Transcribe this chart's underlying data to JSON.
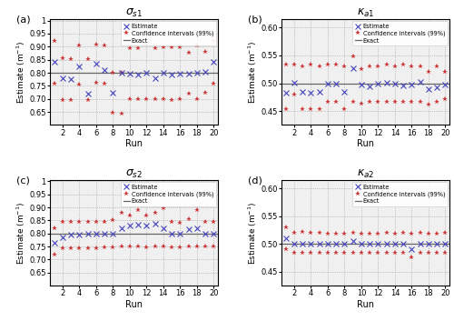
{
  "exact": {
    "sigma_s1": 0.8,
    "ka1": 0.5,
    "sigma_s2": 0.8,
    "ka2": 0.5
  },
  "runs": [
    1,
    2,
    3,
    4,
    5,
    6,
    7,
    8,
    9,
    10,
    11,
    12,
    13,
    14,
    15,
    16,
    17,
    18,
    19,
    20
  ],
  "estimate_color": "#4444bb",
  "ci_color": "#cc3333",
  "exact_color": "#666666",
  "bg_color": "#f0f0f0",
  "sigma_s1_est": [
    0.843,
    0.778,
    0.776,
    0.824,
    0.72,
    0.835,
    0.812,
    0.724,
    0.8,
    0.796,
    0.792,
    0.8,
    0.78,
    0.8,
    0.792,
    0.797,
    0.795,
    0.801,
    0.804,
    0.842
  ],
  "sigma_s1_ci_upper": [
    0.921,
    0.855,
    0.853,
    0.906,
    0.853,
    0.907,
    0.905,
    0.8,
    0.8,
    0.895,
    0.893,
    0.91,
    0.893,
    0.897,
    0.896,
    0.896,
    0.875,
    0.906,
    0.88,
    0.921
  ],
  "sigma_s1_ci_lower": [
    0.757,
    0.695,
    0.697,
    0.755,
    0.695,
    0.763,
    0.76,
    0.648,
    0.645,
    0.7,
    0.698,
    0.698,
    0.7,
    0.7,
    0.695,
    0.7,
    0.72,
    0.7,
    0.724,
    0.758
  ],
  "ka1_est": [
    0.483,
    0.501,
    0.485,
    0.483,
    0.484,
    0.499,
    0.5,
    0.484,
    0.527,
    0.497,
    0.494,
    0.5,
    0.501,
    0.5,
    0.496,
    0.497,
    0.503,
    0.49,
    0.493,
    0.498
  ],
  "ka1_ci_upper": [
    0.533,
    0.533,
    0.531,
    0.534,
    0.53,
    0.533,
    0.534,
    0.53,
    0.549,
    0.525,
    0.531,
    0.53,
    0.533,
    0.53,
    0.534,
    0.53,
    0.531,
    0.521,
    0.531,
    0.521
  ],
  "ka1_ci_lower": [
    0.453,
    0.48,
    0.453,
    0.453,
    0.453,
    0.467,
    0.467,
    0.453,
    0.467,
    0.463,
    0.467,
    0.467,
    0.467,
    0.467,
    0.467,
    0.467,
    0.467,
    0.462,
    0.467,
    0.471
  ],
  "sigma_s2_est": [
    0.764,
    0.786,
    0.795,
    0.797,
    0.798,
    0.8,
    0.8,
    0.8,
    0.82,
    0.83,
    0.834,
    0.83,
    0.836,
    0.82,
    0.8,
    0.8,
    0.815,
    0.82,
    0.8,
    0.8
  ],
  "sigma_s2_ci_upper": [
    0.82,
    0.845,
    0.845,
    0.845,
    0.845,
    0.845,
    0.845,
    0.85,
    0.88,
    0.87,
    0.89,
    0.87,
    0.88,
    0.895,
    0.845,
    0.84,
    0.855,
    0.89,
    0.845,
    0.845
  ],
  "sigma_s2_ci_lower": [
    0.718,
    0.742,
    0.742,
    0.742,
    0.745,
    0.745,
    0.748,
    0.748,
    0.752,
    0.75,
    0.75,
    0.748,
    0.75,
    0.752,
    0.748,
    0.748,
    0.75,
    0.75,
    0.752,
    0.752
  ],
  "ka2_est": [
    0.51,
    0.5,
    0.501,
    0.5,
    0.5,
    0.5,
    0.5,
    0.501,
    0.505,
    0.5,
    0.5,
    0.5,
    0.5,
    0.5,
    0.5,
    0.49,
    0.5,
    0.5,
    0.5,
    0.5
  ],
  "ka2_ci_upper": [
    0.53,
    0.52,
    0.521,
    0.52,
    0.52,
    0.519,
    0.519,
    0.519,
    0.52,
    0.519,
    0.519,
    0.519,
    0.52,
    0.519,
    0.52,
    0.519,
    0.52,
    0.519,
    0.519,
    0.52
  ],
  "ka2_ci_lower": [
    0.49,
    0.484,
    0.484,
    0.484,
    0.484,
    0.484,
    0.484,
    0.484,
    0.484,
    0.484,
    0.484,
    0.484,
    0.484,
    0.484,
    0.484,
    0.476,
    0.484,
    0.484,
    0.484,
    0.484
  ]
}
